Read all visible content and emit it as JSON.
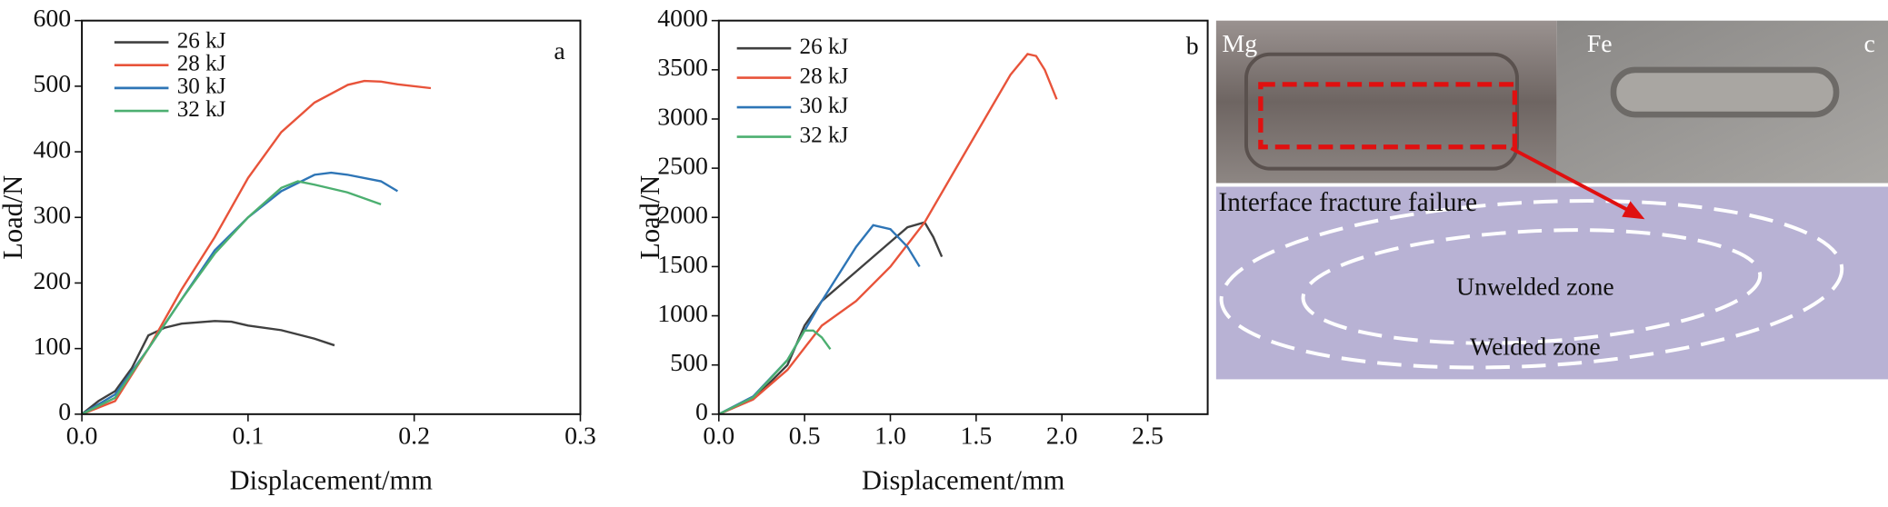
{
  "charts": [
    {
      "type": "line",
      "panel_label": "a",
      "xlabel": "Displacement/mm",
      "ylabel": "Load/N",
      "xlim": [
        0,
        0.3
      ],
      "ylim": [
        0,
        600
      ],
      "xticks": [
        {
          "value": 0,
          "label": "0.0"
        },
        0.1,
        0.2,
        0.3
      ],
      "yticks": [
        0,
        100,
        200,
        300,
        400,
        500,
        600
      ],
      "legend": "upper left",
      "series": [
        {
          "name": "26 kJ",
          "color": "#404040",
          "x": [
            0,
            0.01,
            0.02,
            0.03,
            0.04,
            0.05,
            0.06,
            0.08,
            0.09,
            0.1,
            0.12,
            0.14,
            0.152
          ],
          "values": [
            0,
            20,
            35,
            70,
            120,
            132,
            138,
            142,
            141,
            135,
            128,
            115,
            105
          ]
        },
        {
          "name": "28 kJ",
          "color": "#e8533a",
          "x": [
            0,
            0.02,
            0.04,
            0.06,
            0.08,
            0.1,
            0.12,
            0.14,
            0.16,
            0.17,
            0.18,
            0.19,
            0.21
          ],
          "values": [
            0,
            20,
            100,
            190,
            270,
            360,
            430,
            475,
            502,
            508,
            507,
            503,
            497
          ]
        },
        {
          "name": "30 kJ",
          "color": "#2e75b6",
          "x": [
            0,
            0.02,
            0.04,
            0.06,
            0.08,
            0.1,
            0.12,
            0.14,
            0.15,
            0.16,
            0.18,
            0.19
          ],
          "values": [
            0,
            30,
            100,
            175,
            250,
            300,
            340,
            365,
            368,
            365,
            355,
            340
          ]
        },
        {
          "name": "32 kJ",
          "color": "#4caf70",
          "x": [
            0,
            0.02,
            0.04,
            0.06,
            0.08,
            0.1,
            0.12,
            0.13,
            0.14,
            0.16,
            0.18
          ],
          "values": [
            0,
            25,
            100,
            175,
            245,
            300,
            345,
            355,
            350,
            338,
            320
          ]
        }
      ]
    },
    {
      "type": "line",
      "panel_label": "b",
      "xlabel": "Displacement/mm",
      "ylabel": "Load/N",
      "xlim": [
        0,
        2.85
      ],
      "ylim": [
        0,
        4000
      ],
      "xticks": [
        {
          "value": 0,
          "label": "0.0"
        },
        0.5,
        {
          "value": 1,
          "label": "1.0"
        },
        1.5,
        {
          "value": 2,
          "label": "2.0"
        },
        2.5
      ],
      "yticks": [
        0,
        500,
        1000,
        1500,
        2000,
        2500,
        3000,
        3500,
        4000
      ],
      "legend": "upper left",
      "series": [
        {
          "name": "26 kJ",
          "color": "#404040",
          "x": [
            0,
            0.2,
            0.4,
            0.5,
            0.6,
            0.8,
            1.0,
            1.1,
            1.2,
            1.25,
            1.3
          ],
          "values": [
            0,
            150,
            500,
            900,
            1150,
            1450,
            1750,
            1900,
            1950,
            1800,
            1600
          ]
        },
        {
          "name": "28 kJ",
          "color": "#e8533a",
          "x": [
            0,
            0.2,
            0.4,
            0.6,
            0.8,
            1.0,
            1.2,
            1.4,
            1.6,
            1.7,
            1.8,
            1.85,
            1.9,
            1.97
          ],
          "values": [
            0,
            150,
            450,
            900,
            1150,
            1500,
            1950,
            2550,
            3150,
            3450,
            3660,
            3640,
            3500,
            3200
          ]
        },
        {
          "name": "30 kJ",
          "color": "#2e75b6",
          "x": [
            0,
            0.2,
            0.4,
            0.6,
            0.8,
            0.9,
            1.0,
            1.1,
            1.17
          ],
          "values": [
            0,
            180,
            550,
            1150,
            1700,
            1920,
            1880,
            1700,
            1500
          ]
        },
        {
          "name": "32 kJ",
          "color": "#4caf70",
          "x": [
            0,
            0.2,
            0.4,
            0.5,
            0.55,
            0.6,
            0.65
          ],
          "values": [
            0,
            170,
            550,
            850,
            850,
            780,
            660
          ]
        }
      ]
    }
  ],
  "photo": {
    "panel_label": "c",
    "left_label": "Mg",
    "right_label": "Fe",
    "caption": "Interface fracture failure",
    "inner_label": "Unwelded zone",
    "outer_label": "Welded zone"
  }
}
